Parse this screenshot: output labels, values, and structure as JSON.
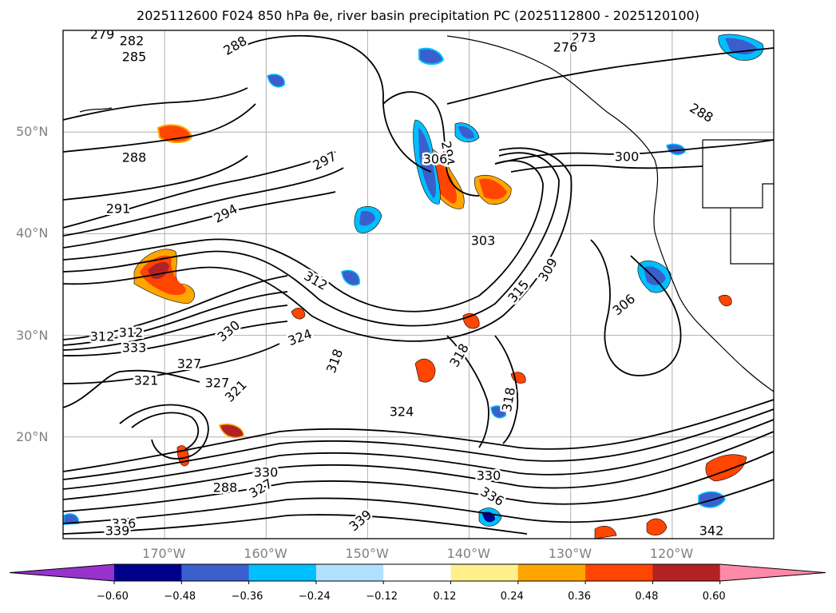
{
  "chart_data": {
    "type": "map",
    "title": "2025112600 F024 850 hPa θe, river basin precipitation PC (2025112800 - 2025120100)",
    "lat_ticks": [
      "50°N",
      "40°N",
      "30°N",
      "20°N"
    ],
    "lon_ticks": [
      "170°W",
      "160°W",
      "150°W",
      "140°W",
      "130°W",
      "120°W"
    ],
    "lat_range": [
      10,
      60
    ],
    "lon_range": [
      -180,
      -110
    ],
    "contour_field": "850 hPa equivalent potential temperature (K)",
    "contour_labels": [
      "279",
      "282",
      "285",
      "288",
      "288",
      "291",
      "294",
      "294",
      "297",
      "300",
      "303",
      "306",
      "306",
      "309",
      "312",
      "312",
      "312",
      "315",
      "318",
      "318",
      "318",
      "321",
      "321",
      "324",
      "324",
      "327",
      "327",
      "327",
      "330",
      "330",
      "330",
      "333",
      "336",
      "336",
      "339",
      "339",
      "342",
      "273",
      "276",
      "288",
      "288"
    ],
    "filled_field": "river basin precipitation PC",
    "colorbar": {
      "ticks": [
        "−0.60",
        "−0.48",
        "−0.36",
        "−0.24",
        "−0.12",
        "0.12",
        "0.24",
        "0.36",
        "0.48",
        "0.60"
      ],
      "levels": [
        -0.6,
        -0.48,
        -0.36,
        -0.24,
        -0.12,
        0.12,
        0.24,
        0.36,
        0.48,
        0.6
      ],
      "colors": [
        "#9932cc",
        "#00008b",
        "#3a5fcd",
        "#00bfff",
        "#b0e2ff",
        "#ffffff",
        "#fff08c",
        "#ffa500",
        "#ff4500",
        "#b22222",
        "#ff89a8"
      ],
      "extend": "both"
    }
  }
}
